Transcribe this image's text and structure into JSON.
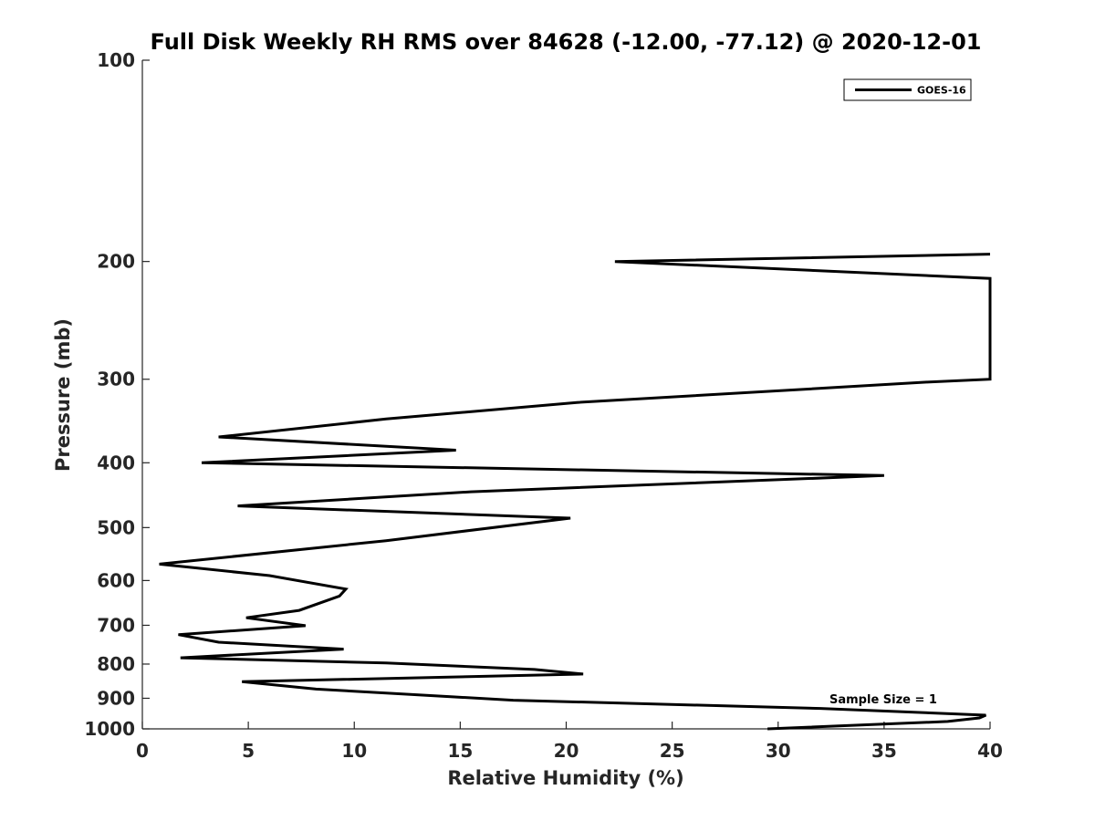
{
  "chart_data": {
    "type": "line",
    "title": "Full Disk Weekly RH RMS over 84628 (-12.00, -77.12) @ 2020-12-01",
    "xlabel": "Relative Humidity (%)",
    "ylabel": "Pressure (mb)",
    "xlim": [
      0,
      40
    ],
    "ylim": [
      100,
      1000
    ],
    "y_scale": "log",
    "y_reversed": true,
    "xticks": [
      0,
      5,
      10,
      15,
      20,
      25,
      30,
      35,
      40
    ],
    "yticks": [
      100,
      200,
      300,
      400,
      500,
      600,
      700,
      800,
      900,
      1000
    ],
    "grid": false,
    "legend_position": "top-right",
    "annotation": "Sample Size = 1",
    "series": [
      {
        "name": "GOES-16",
        "color": "#000000",
        "points": [
          {
            "x": 40.0,
            "y": 195
          },
          {
            "x": 22.3,
            "y": 200
          },
          {
            "x": 40.0,
            "y": 212
          },
          {
            "x": 40.0,
            "y": 300
          },
          {
            "x": 37.0,
            "y": 303
          },
          {
            "x": 20.5,
            "y": 325
          },
          {
            "x": 11.5,
            "y": 344
          },
          {
            "x": 3.6,
            "y": 366
          },
          {
            "x": 14.8,
            "y": 383
          },
          {
            "x": 2.8,
            "y": 400
          },
          {
            "x": 35.0,
            "y": 418
          },
          {
            "x": 15.5,
            "y": 442
          },
          {
            "x": 4.5,
            "y": 464
          },
          {
            "x": 20.2,
            "y": 484
          },
          {
            "x": 11.5,
            "y": 523
          },
          {
            "x": 0.8,
            "y": 567
          },
          {
            "x": 6.0,
            "y": 590
          },
          {
            "x": 9.6,
            "y": 618
          },
          {
            "x": 9.3,
            "y": 633
          },
          {
            "x": 7.4,
            "y": 665
          },
          {
            "x": 4.9,
            "y": 682
          },
          {
            "x": 7.7,
            "y": 701
          },
          {
            "x": 1.7,
            "y": 723
          },
          {
            "x": 3.6,
            "y": 742
          },
          {
            "x": 9.5,
            "y": 760
          },
          {
            "x": 1.8,
            "y": 783
          },
          {
            "x": 11.5,
            "y": 797
          },
          {
            "x": 18.5,
            "y": 815
          },
          {
            "x": 20.8,
            "y": 828
          },
          {
            "x": 4.7,
            "y": 850
          },
          {
            "x": 8.2,
            "y": 872
          },
          {
            "x": 17.5,
            "y": 906
          },
          {
            "x": 32.0,
            "y": 932
          },
          {
            "x": 39.8,
            "y": 954
          },
          {
            "x": 39.5,
            "y": 963
          },
          {
            "x": 38.0,
            "y": 975
          },
          {
            "x": 29.5,
            "y": 1000
          }
        ]
      }
    ]
  }
}
